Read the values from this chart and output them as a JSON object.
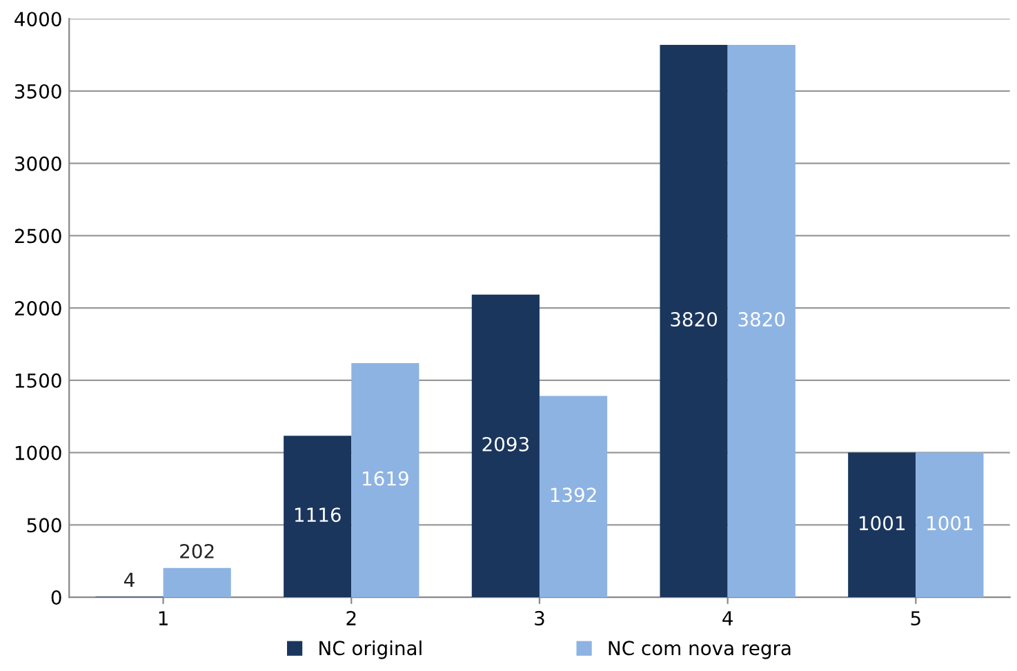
{
  "chart_data": {
    "type": "bar",
    "categories": [
      "1",
      "2",
      "3",
      "4",
      "5"
    ],
    "series": [
      {
        "name": "NC original",
        "color": "#1a365d",
        "values": [
          4,
          1116,
          2093,
          3820,
          1001
        ]
      },
      {
        "name": "NC com nova regra",
        "color": "#8db3e2",
        "values": [
          202,
          1619,
          1392,
          3820,
          1001
        ]
      }
    ],
    "ylim": [
      0,
      4000
    ],
    "yticks": [
      0,
      500,
      1000,
      1500,
      2000,
      2500,
      3000,
      3500,
      4000
    ],
    "grid": "y",
    "legend": "bottom",
    "data_labels": true
  }
}
